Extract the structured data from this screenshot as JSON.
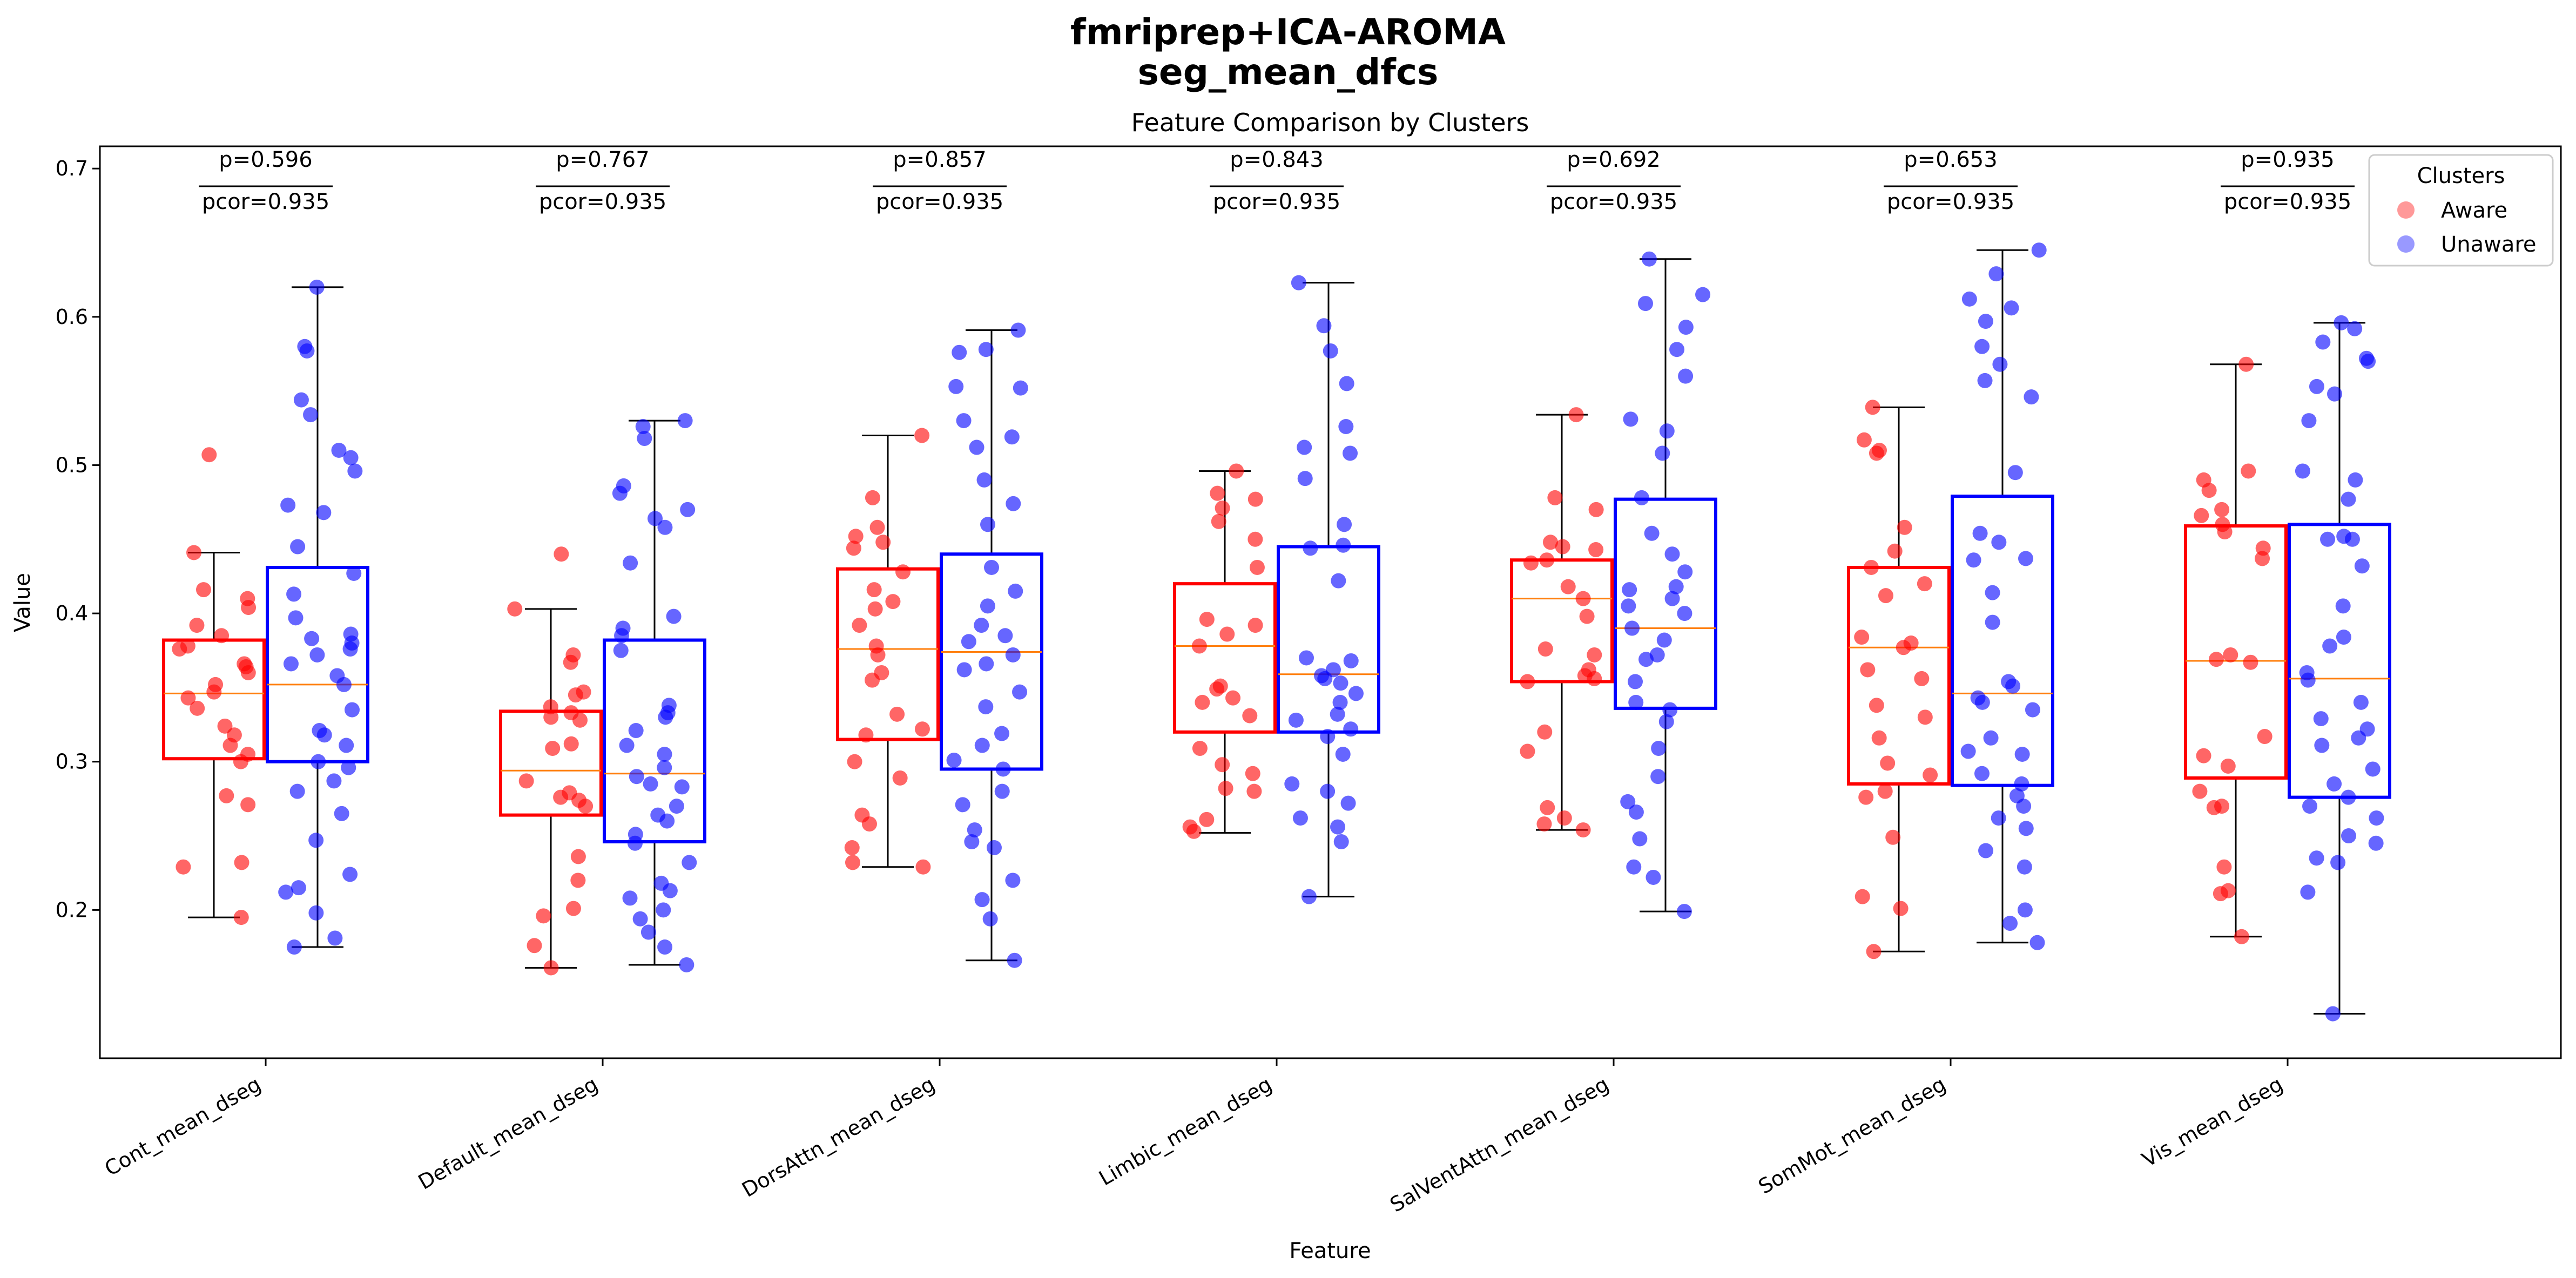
{
  "chart_data": {
    "type": "box",
    "suptitle_line1": "fmriprep+ICA-AROMA",
    "suptitle_line2": "seg_mean_dfcs",
    "title": "Feature Comparison by Clusters",
    "xlabel": "Feature",
    "ylabel": "Value",
    "ylim": [
      0.1,
      0.715
    ],
    "yticks": [
      "0.2",
      "0.3",
      "0.4",
      "0.5",
      "0.6",
      "0.7"
    ],
    "legend": {
      "title": "Clusters",
      "placement": "top-right",
      "entries": [
        {
          "name": "Aware",
          "color": "#ff0000"
        },
        {
          "name": "Unaware",
          "color": "#0000ff"
        }
      ]
    },
    "median_color": "#ff7f0e",
    "categories": [
      "Cont_mean_dseg",
      "Default_mean_dseg",
      "DorsAttn_mean_dseg",
      "Limbic_mean_dseg",
      "SalVentAttn_mean_dseg",
      "SomMot_mean_dseg",
      "Vis_mean_dseg"
    ],
    "annotations": [
      {
        "p": "p=0.596",
        "pcor": "pcor=0.935"
      },
      {
        "p": "p=0.767",
        "pcor": "pcor=0.935"
      },
      {
        "p": "p=0.857",
        "pcor": "pcor=0.935"
      },
      {
        "p": "p=0.843",
        "pcor": "pcor=0.935"
      },
      {
        "p": "p=0.692",
        "pcor": "pcor=0.935"
      },
      {
        "p": "p=0.653",
        "pcor": "pcor=0.935"
      },
      {
        "p": "p=0.935",
        "pcor": "pcor=0.935"
      }
    ],
    "series": [
      {
        "name": "Aware",
        "color": "#ff0000",
        "boxes": [
          {
            "whislo": 0.195,
            "q1": 0.302,
            "med": 0.346,
            "q3": 0.382,
            "whishi": 0.441
          },
          {
            "whislo": 0.161,
            "q1": 0.264,
            "med": 0.294,
            "q3": 0.334,
            "whishi": 0.403
          },
          {
            "whislo": 0.229,
            "q1": 0.315,
            "med": 0.376,
            "q3": 0.43,
            "whishi": 0.52
          },
          {
            "whislo": 0.252,
            "q1": 0.32,
            "med": 0.378,
            "q3": 0.42,
            "whishi": 0.496
          },
          {
            "whislo": 0.254,
            "q1": 0.354,
            "med": 0.41,
            "q3": 0.436,
            "whishi": 0.534
          },
          {
            "whislo": 0.172,
            "q1": 0.285,
            "med": 0.377,
            "q3": 0.431,
            "whishi": 0.539
          },
          {
            "whislo": 0.182,
            "q1": 0.289,
            "med": 0.368,
            "q3": 0.459,
            "whishi": 0.568
          }
        ],
        "points": [
          [
            0.507,
            0.441,
            0.416,
            0.41,
            0.404,
            0.392,
            0.385,
            0.378,
            0.376,
            0.366,
            0.364,
            0.36,
            0.352,
            0.347,
            0.343,
            0.336,
            0.324,
            0.318,
            0.311,
            0.305,
            0.3,
            0.277,
            0.271,
            0.232,
            0.229,
            0.195
          ],
          [
            0.44,
            0.403,
            0.372,
            0.367,
            0.347,
            0.345,
            0.337,
            0.333,
            0.33,
            0.328,
            0.312,
            0.309,
            0.287,
            0.279,
            0.276,
            0.274,
            0.27,
            0.236,
            0.22,
            0.201,
            0.196,
            0.176,
            0.161
          ],
          [
            0.52,
            0.478,
            0.458,
            0.452,
            0.448,
            0.444,
            0.428,
            0.416,
            0.408,
            0.403,
            0.392,
            0.378,
            0.372,
            0.36,
            0.355,
            0.332,
            0.322,
            0.318,
            0.3,
            0.289,
            0.264,
            0.258,
            0.242,
            0.232,
            0.229
          ],
          [
            0.496,
            0.481,
            0.477,
            0.471,
            0.462,
            0.45,
            0.431,
            0.396,
            0.392,
            0.386,
            0.378,
            0.351,
            0.349,
            0.343,
            0.34,
            0.331,
            0.309,
            0.298,
            0.292,
            0.282,
            0.28,
            0.261,
            0.256,
            0.253
          ],
          [
            0.534,
            0.478,
            0.47,
            0.448,
            0.445,
            0.443,
            0.436,
            0.434,
            0.418,
            0.41,
            0.398,
            0.376,
            0.372,
            0.362,
            0.358,
            0.356,
            0.354,
            0.32,
            0.307,
            0.269,
            0.262,
            0.258,
            0.254
          ],
          [
            0.539,
            0.517,
            0.51,
            0.508,
            0.458,
            0.442,
            0.431,
            0.42,
            0.412,
            0.384,
            0.38,
            0.377,
            0.362,
            0.356,
            0.338,
            0.33,
            0.316,
            0.299,
            0.291,
            0.28,
            0.276,
            0.249,
            0.209,
            0.201,
            0.172
          ],
          [
            0.568,
            0.496,
            0.49,
            0.483,
            0.47,
            0.466,
            0.46,
            0.455,
            0.444,
            0.437,
            0.372,
            0.369,
            0.367,
            0.317,
            0.304,
            0.297,
            0.28,
            0.27,
            0.269,
            0.229,
            0.213,
            0.211,
            0.182
          ]
        ]
      },
      {
        "name": "Unaware",
        "color": "#0000ff",
        "boxes": [
          {
            "whislo": 0.175,
            "q1": 0.3,
            "med": 0.352,
            "q3": 0.431,
            "whishi": 0.62
          },
          {
            "whislo": 0.163,
            "q1": 0.246,
            "med": 0.292,
            "q3": 0.382,
            "whishi": 0.53
          },
          {
            "whislo": 0.166,
            "q1": 0.295,
            "med": 0.374,
            "q3": 0.44,
            "whishi": 0.591
          },
          {
            "whislo": 0.209,
            "q1": 0.32,
            "med": 0.359,
            "q3": 0.445,
            "whishi": 0.623
          },
          {
            "whislo": 0.199,
            "q1": 0.336,
            "med": 0.39,
            "q3": 0.477,
            "whishi": 0.639
          },
          {
            "whislo": 0.178,
            "q1": 0.284,
            "med": 0.346,
            "q3": 0.479,
            "whishi": 0.645
          },
          {
            "whislo": 0.13,
            "q1": 0.276,
            "med": 0.356,
            "q3": 0.46,
            "whishi": 0.596
          }
        ],
        "points": [
          [
            0.62,
            0.58,
            0.577,
            0.544,
            0.534,
            0.51,
            0.505,
            0.496,
            0.473,
            0.468,
            0.445,
            0.427,
            0.413,
            0.397,
            0.386,
            0.383,
            0.38,
            0.376,
            0.372,
            0.366,
            0.358,
            0.352,
            0.335,
            0.321,
            0.318,
            0.311,
            0.3,
            0.296,
            0.287,
            0.28,
            0.265,
            0.247,
            0.224,
            0.215,
            0.212,
            0.198,
            0.181,
            0.175
          ],
          [
            0.53,
            0.526,
            0.518,
            0.486,
            0.481,
            0.47,
            0.464,
            0.458,
            0.434,
            0.398,
            0.39,
            0.385,
            0.375,
            0.338,
            0.333,
            0.33,
            0.321,
            0.311,
            0.305,
            0.296,
            0.29,
            0.285,
            0.283,
            0.27,
            0.264,
            0.26,
            0.251,
            0.245,
            0.232,
            0.218,
            0.213,
            0.208,
            0.2,
            0.194,
            0.185,
            0.175,
            0.163
          ],
          [
            0.591,
            0.578,
            0.576,
            0.553,
            0.552,
            0.53,
            0.519,
            0.512,
            0.49,
            0.474,
            0.46,
            0.431,
            0.415,
            0.405,
            0.392,
            0.385,
            0.381,
            0.372,
            0.366,
            0.362,
            0.347,
            0.337,
            0.319,
            0.311,
            0.301,
            0.295,
            0.28,
            0.271,
            0.254,
            0.246,
            0.242,
            0.22,
            0.207,
            0.194,
            0.166
          ],
          [
            0.623,
            0.594,
            0.577,
            0.555,
            0.526,
            0.512,
            0.508,
            0.491,
            0.46,
            0.446,
            0.444,
            0.422,
            0.37,
            0.368,
            0.362,
            0.358,
            0.356,
            0.353,
            0.346,
            0.34,
            0.332,
            0.328,
            0.322,
            0.317,
            0.305,
            0.285,
            0.28,
            0.272,
            0.262,
            0.256,
            0.246,
            0.209
          ],
          [
            0.639,
            0.615,
            0.609,
            0.593,
            0.578,
            0.56,
            0.531,
            0.523,
            0.508,
            0.478,
            0.454,
            0.44,
            0.428,
            0.418,
            0.416,
            0.41,
            0.405,
            0.4,
            0.39,
            0.382,
            0.372,
            0.369,
            0.354,
            0.34,
            0.335,
            0.327,
            0.309,
            0.29,
            0.273,
            0.266,
            0.248,
            0.229,
            0.222,
            0.199
          ],
          [
            0.645,
            0.629,
            0.612,
            0.606,
            0.597,
            0.58,
            0.568,
            0.557,
            0.546,
            0.495,
            0.454,
            0.448,
            0.437,
            0.436,
            0.414,
            0.394,
            0.354,
            0.351,
            0.343,
            0.34,
            0.335,
            0.316,
            0.307,
            0.305,
            0.292,
            0.285,
            0.277,
            0.27,
            0.262,
            0.255,
            0.24,
            0.229,
            0.2,
            0.191,
            0.178
          ],
          [
            0.596,
            0.592,
            0.583,
            0.572,
            0.57,
            0.553,
            0.548,
            0.53,
            0.496,
            0.49,
            0.477,
            0.452,
            0.45,
            0.45,
            0.432,
            0.405,
            0.384,
            0.378,
            0.36,
            0.355,
            0.34,
            0.329,
            0.322,
            0.316,
            0.311,
            0.295,
            0.285,
            0.276,
            0.27,
            0.262,
            0.25,
            0.245,
            0.235,
            0.232,
            0.212,
            0.13
          ]
        ]
      }
    ]
  }
}
